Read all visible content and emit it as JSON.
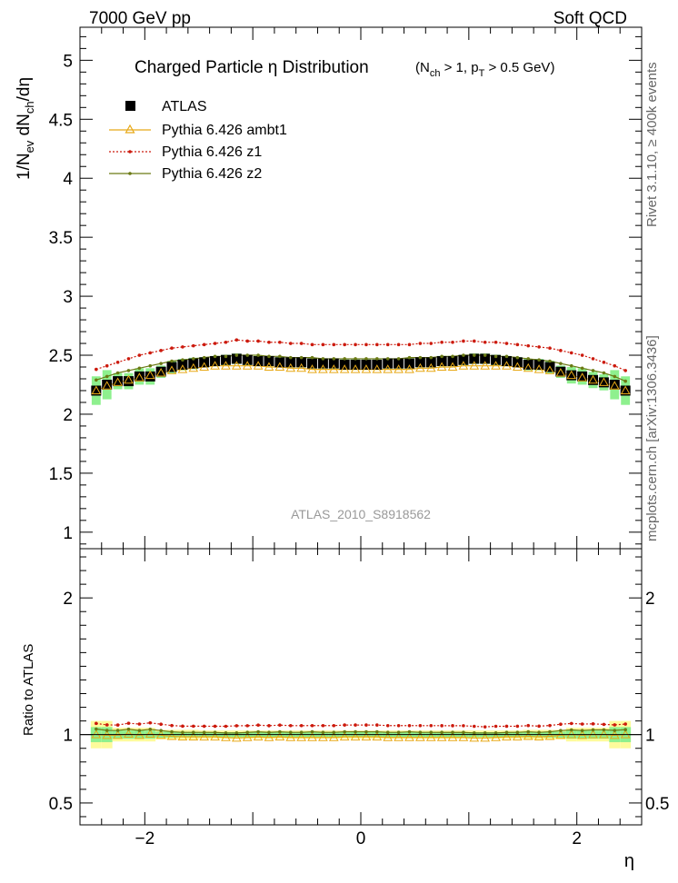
{
  "header": {
    "left": "7000 GeV pp",
    "right": "Soft QCD"
  },
  "side": {
    "rivet": "Rivet 3.1.10, ≥ 400k events",
    "mcplots": "mcplots.cern.ch [arXiv:1306.3436]"
  },
  "plot": {
    "title": "Charged Particle  η Distribution",
    "title_cond_open": "(N",
    "title_cond_sub1": "ch",
    "title_cond_mid": " > 1, p",
    "title_cond_sub2": "T",
    "title_cond_close": " > 0.5 GeV)",
    "analysis_id": "ATLAS_2010_S8918562",
    "ylabel_a": "1/N",
    "ylabel_sub1": "ev",
    "ylabel_b": " dN",
    "ylabel_sub2": "ch",
    "ylabel_c": "/dη",
    "ratio_ylabel": "Ratio to ATLAS",
    "xlabel": "η"
  },
  "chart_data": {
    "type": "line",
    "xlim": [
      -2.6,
      2.6
    ],
    "ylim_main": [
      0.86,
      5.28
    ],
    "ylim_ratio": [
      0.34,
      2.36
    ],
    "x_ticks": [
      {
        "v": -2,
        "label": "−2"
      },
      {
        "v": 0,
        "label": "0"
      },
      {
        "v": 2,
        "label": "2"
      }
    ],
    "y_ticks_main": [
      {
        "v": 1,
        "label": "1"
      },
      {
        "v": 1.5,
        "label": "1.5"
      },
      {
        "v": 2,
        "label": "2"
      },
      {
        "v": 2.5,
        "label": "2.5"
      },
      {
        "v": 3,
        "label": "3"
      },
      {
        "v": 3.5,
        "label": "3.5"
      },
      {
        "v": 4,
        "label": "4"
      },
      {
        "v": 4.5,
        "label": "4.5"
      },
      {
        "v": 5,
        "label": "5"
      }
    ],
    "y_ticks_ratio": [
      {
        "v": 0.5,
        "label": "0.5"
      },
      {
        "v": 1,
        "label": "1"
      },
      {
        "v": 2,
        "label": "2"
      }
    ],
    "x": [
      -2.45,
      -2.35,
      -2.25,
      -2.15,
      -2.05,
      -1.95,
      -1.85,
      -1.75,
      -1.65,
      -1.55,
      -1.45,
      -1.35,
      -1.25,
      -1.15,
      -1.05,
      -0.95,
      -0.85,
      -0.75,
      -0.65,
      -0.55,
      -0.45,
      -0.35,
      -0.25,
      -0.15,
      -0.05,
      0.05,
      0.15,
      0.25,
      0.35,
      0.45,
      0.55,
      0.65,
      0.75,
      0.85,
      0.95,
      1.05,
      1.15,
      1.25,
      1.35,
      1.45,
      1.55,
      1.65,
      1.75,
      1.85,
      1.95,
      2.05,
      2.15,
      2.25,
      2.35,
      2.45
    ],
    "series": [
      {
        "name": "ATLAS",
        "color": "#000000",
        "marker": "square",
        "values": [
          2.2,
          2.25,
          2.28,
          2.28,
          2.32,
          2.32,
          2.36,
          2.4,
          2.42,
          2.43,
          2.44,
          2.45,
          2.46,
          2.47,
          2.46,
          2.45,
          2.45,
          2.44,
          2.44,
          2.44,
          2.43,
          2.43,
          2.43,
          2.42,
          2.42,
          2.42,
          2.42,
          2.43,
          2.43,
          2.43,
          2.44,
          2.44,
          2.45,
          2.45,
          2.46,
          2.47,
          2.47,
          2.46,
          2.45,
          2.44,
          2.42,
          2.42,
          2.4,
          2.36,
          2.33,
          2.32,
          2.29,
          2.27,
          2.25,
          2.2
        ]
      },
      {
        "name": "Pythia 6.426 ambt1",
        "color": "#e8a917",
        "marker": "triangle",
        "values": [
          2.2,
          2.24,
          2.27,
          2.29,
          2.31,
          2.33,
          2.35,
          2.37,
          2.38,
          2.39,
          2.4,
          2.41,
          2.41,
          2.41,
          2.41,
          2.41,
          2.4,
          2.4,
          2.39,
          2.39,
          2.38,
          2.38,
          2.38,
          2.38,
          2.38,
          2.38,
          2.38,
          2.38,
          2.38,
          2.38,
          2.39,
          2.39,
          2.4,
          2.4,
          2.41,
          2.41,
          2.41,
          2.41,
          2.41,
          2.4,
          2.39,
          2.38,
          2.37,
          2.35,
          2.33,
          2.31,
          2.29,
          2.27,
          2.24,
          2.2
        ]
      },
      {
        "name": "Pythia 6.426 z1",
        "color": "#cc1a0d",
        "marker": "dot",
        "dash": "2,2",
        "values": [
          2.38,
          2.41,
          2.44,
          2.47,
          2.5,
          2.52,
          2.54,
          2.56,
          2.57,
          2.58,
          2.59,
          2.6,
          2.61,
          2.63,
          2.62,
          2.62,
          2.61,
          2.61,
          2.6,
          2.6,
          2.59,
          2.59,
          2.59,
          2.59,
          2.59,
          2.59,
          2.59,
          2.59,
          2.59,
          2.59,
          2.6,
          2.6,
          2.61,
          2.61,
          2.62,
          2.62,
          2.61,
          2.61,
          2.6,
          2.59,
          2.58,
          2.57,
          2.56,
          2.54,
          2.52,
          2.5,
          2.47,
          2.44,
          2.41,
          2.37
        ]
      },
      {
        "name": "Pythia 6.426 z2",
        "color": "#6b7a14",
        "marker": "dot",
        "values": [
          2.29,
          2.32,
          2.35,
          2.37,
          2.39,
          2.41,
          2.43,
          2.45,
          2.46,
          2.47,
          2.48,
          2.49,
          2.49,
          2.5,
          2.5,
          2.5,
          2.49,
          2.49,
          2.48,
          2.48,
          2.48,
          2.47,
          2.47,
          2.47,
          2.47,
          2.47,
          2.47,
          2.47,
          2.47,
          2.48,
          2.48,
          2.48,
          2.49,
          2.49,
          2.5,
          2.5,
          2.5,
          2.49,
          2.49,
          2.48,
          2.47,
          2.46,
          2.45,
          2.43,
          2.41,
          2.39,
          2.37,
          2.35,
          2.32,
          2.28
        ]
      }
    ],
    "data_band_halfwidth": [
      0.1,
      0.1,
      0.05,
      0.05,
      0.05,
      0.05,
      0.035,
      0.035,
      0.035,
      0.035,
      0.03,
      0.03,
      0.03,
      0.03,
      0.03,
      0.03,
      0.03,
      0.03,
      0.03,
      0.03,
      0.03,
      0.03,
      0.03,
      0.03,
      0.03,
      0.03,
      0.03,
      0.03,
      0.03,
      0.03,
      0.03,
      0.03,
      0.03,
      0.03,
      0.03,
      0.03,
      0.03,
      0.03,
      0.03,
      0.03,
      0.035,
      0.035,
      0.035,
      0.035,
      0.05,
      0.05,
      0.05,
      0.05,
      0.1,
      0.1
    ],
    "data_stat_halfwidth": [
      0.055,
      0.055,
      0.03,
      0.03,
      0.03,
      0.03,
      0.022,
      0.022,
      0.02,
      0.02,
      0.018,
      0.018,
      0.018,
      0.018,
      0.018,
      0.018,
      0.018,
      0.018,
      0.018,
      0.018,
      0.018,
      0.018,
      0.018,
      0.018,
      0.018,
      0.018,
      0.018,
      0.018,
      0.018,
      0.018,
      0.018,
      0.018,
      0.018,
      0.018,
      0.018,
      0.018,
      0.018,
      0.018,
      0.018,
      0.018,
      0.02,
      0.02,
      0.022,
      0.022,
      0.03,
      0.03,
      0.03,
      0.03,
      0.055,
      0.055
    ]
  }
}
